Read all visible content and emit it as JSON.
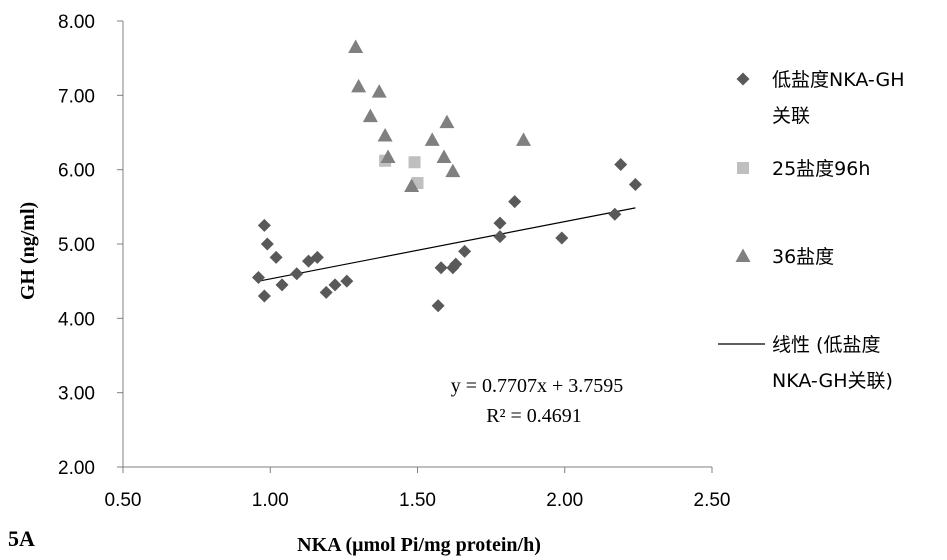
{
  "panel_label": "5A",
  "chart_data": {
    "type": "scatter",
    "xlabel": "NKA (μmol Pi/mg protein/h)",
    "ylabel": "GH (ng/ml)",
    "xlim": [
      0.5,
      2.5
    ],
    "ylim": [
      2.0,
      8.0
    ],
    "x_ticks": [
      "0.50",
      "1.00",
      "1.50",
      "2.00",
      "2.50"
    ],
    "y_ticks": [
      "2.00",
      "3.00",
      "4.00",
      "5.00",
      "6.00",
      "7.00",
      "8.00"
    ],
    "grid": false,
    "legend_position": "right",
    "series": [
      {
        "name": "低盐度NKA-GH关联",
        "legend_lines": [
          "低盐度NKA-GH",
          "关联"
        ],
        "marker": "diamond",
        "color": "#595959",
        "points": [
          [
            0.96,
            4.55
          ],
          [
            0.98,
            5.25
          ],
          [
            0.98,
            4.3
          ],
          [
            0.99,
            5.0
          ],
          [
            1.02,
            4.82
          ],
          [
            1.04,
            4.45
          ],
          [
            1.09,
            4.6
          ],
          [
            1.13,
            4.77
          ],
          [
            1.16,
            4.82
          ],
          [
            1.19,
            4.35
          ],
          [
            1.22,
            4.45
          ],
          [
            1.26,
            4.5
          ],
          [
            1.57,
            4.17
          ],
          [
            1.58,
            4.68
          ],
          [
            1.62,
            4.68
          ],
          [
            1.63,
            4.73
          ],
          [
            1.66,
            4.9
          ],
          [
            1.78,
            5.28
          ],
          [
            1.78,
            5.1
          ],
          [
            1.83,
            5.57
          ],
          [
            1.99,
            5.08
          ],
          [
            2.17,
            5.4
          ],
          [
            2.19,
            6.07
          ],
          [
            2.24,
            5.8
          ]
        ]
      },
      {
        "name": "25盐度96h",
        "legend_lines": [
          "25盐度96h"
        ],
        "marker": "square",
        "color": "#bfbfbf",
        "points": [
          [
            1.39,
            6.12
          ],
          [
            1.49,
            6.1
          ],
          [
            1.5,
            5.82
          ]
        ]
      },
      {
        "name": "36盐度",
        "legend_lines": [
          "36盐度"
        ],
        "marker": "triangle",
        "color": "#808080",
        "points": [
          [
            1.29,
            7.65
          ],
          [
            1.3,
            7.12
          ],
          [
            1.34,
            6.72
          ],
          [
            1.37,
            7.05
          ],
          [
            1.39,
            6.46
          ],
          [
            1.4,
            6.17
          ],
          [
            1.48,
            5.78
          ],
          [
            1.55,
            6.4
          ],
          [
            1.59,
            6.17
          ],
          [
            1.6,
            6.64
          ],
          [
            1.62,
            5.98
          ],
          [
            1.86,
            6.4
          ]
        ]
      }
    ],
    "trendline": {
      "name": "线性 (低盐度NKA-GH关联)",
      "legend_lines": [
        "线性 (低盐度",
        "NKA-GH关联)"
      ],
      "slope": 0.7707,
      "intercept": 3.7595,
      "x_range": [
        0.96,
        2.24
      ],
      "equation": "y = 0.7707x + 3.7595",
      "r_squared": "R² = 0.4691"
    }
  }
}
